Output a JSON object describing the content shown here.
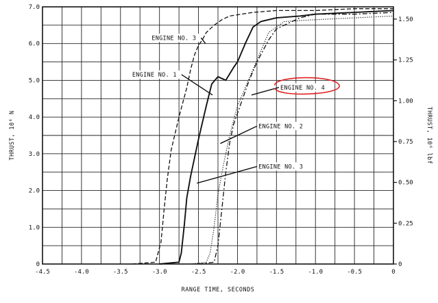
{
  "chart_data": {
    "type": "line",
    "title": "",
    "xlabel": "RANGE TIME, SECONDS",
    "ylabel": "THRUST, 10⁶ N",
    "y2label": "THRUST, 10⁶ lbf",
    "xlim": [
      -4.5,
      0
    ],
    "ylim": [
      0,
      7.0
    ],
    "y2lim": [
      0,
      1.575
    ],
    "x_ticks": [
      -4.5,
      -4.0,
      -3.5,
      -3.0,
      -2.5,
      -2.0,
      -1.5,
      -1.0,
      -0.5,
      0
    ],
    "x_tick_labels": [
      "-4.5",
      "-4.0",
      "-3.5",
      "-3.0",
      "-2.5",
      "-2.0",
      "-1.5",
      "-1.0",
      "-0.5",
      "0"
    ],
    "y_ticks": [
      0,
      1.0,
      2.0,
      3.0,
      4.0,
      5.0,
      6.0,
      7.0
    ],
    "y_tick_labels": [
      "0",
      "1.0",
      "2.0",
      "3.0",
      "4.0",
      "5.0",
      "6.0",
      "7.0"
    ],
    "y2_ticks": [
      0,
      0.25,
      0.5,
      0.75,
      1.0,
      1.25,
      1.5
    ],
    "y2_tick_labels": [
      "0",
      "0.25",
      "0.50",
      "0.75",
      "1.00",
      "1.25",
      "1.50"
    ],
    "grid": true,
    "legend": "none",
    "series": [
      {
        "name": "ENGINE NO. 1",
        "style": "solid",
        "x": [
          -3.0,
          -2.75,
          -2.72,
          -2.68,
          -2.65,
          -2.6,
          -2.5,
          -2.4,
          -2.33,
          -2.25,
          -2.2,
          -2.15,
          -2.05,
          -2.0,
          -1.9,
          -1.8,
          -1.7,
          -1.5,
          -1.2,
          -1.0,
          -0.5,
          0
        ],
        "y": [
          0,
          0.05,
          0.3,
          1.1,
          1.8,
          2.4,
          3.4,
          4.3,
          4.9,
          5.1,
          5.05,
          5.0,
          5.35,
          5.5,
          6.0,
          6.45,
          6.6,
          6.7,
          6.75,
          6.8,
          6.85,
          6.9
        ]
      },
      {
        "name": "ENGINE NO. 2",
        "style": "dash-dot",
        "x": [
          -2.5,
          -2.3,
          -2.25,
          -2.2,
          -2.15,
          -2.1,
          -2.05,
          -1.95,
          -1.85,
          -1.75,
          -1.7,
          -1.6,
          -1.5,
          -1.2,
          -1.0,
          -0.5,
          0
        ],
        "y": [
          0,
          0.05,
          0.5,
          1.5,
          2.5,
          3.3,
          3.8,
          4.4,
          5.0,
          5.5,
          5.7,
          6.1,
          6.4,
          6.7,
          6.8,
          6.8,
          6.85
        ]
      },
      {
        "name": "ENGINE NO. 3",
        "style": "dashed",
        "x": [
          -3.35,
          -3.05,
          -2.98,
          -2.94,
          -2.9,
          -2.85,
          -2.75,
          -2.65,
          -2.6,
          -2.55,
          -2.5,
          -2.45,
          -2.4,
          -2.3,
          -2.2,
          -2.1,
          -1.8,
          -1.5,
          -1.0,
          -0.5,
          0
        ],
        "y": [
          0,
          0.05,
          0.6,
          1.5,
          2.3,
          3.1,
          4.0,
          4.8,
          5.3,
          5.7,
          5.95,
          6.1,
          6.3,
          6.5,
          6.65,
          6.75,
          6.85,
          6.9,
          6.9,
          6.95,
          6.95
        ]
      },
      {
        "name": "ENGINE NO. 4",
        "style": "dotted",
        "x": [
          -2.6,
          -2.4,
          -2.35,
          -2.3,
          -2.25,
          -2.18,
          -2.1,
          -2.0,
          -1.9,
          -1.8,
          -1.7,
          -1.6,
          -1.4,
          -1.0,
          -0.5,
          0
        ],
        "y": [
          0,
          0.05,
          0.3,
          1.0,
          1.9,
          2.7,
          3.5,
          4.3,
          4.8,
          5.3,
          5.8,
          6.3,
          6.6,
          6.65,
          6.7,
          6.75
        ]
      }
    ],
    "annotations": [
      {
        "text": "ENGINE NO. 3",
        "series": "ENGINE NO. 3",
        "label_at": [
          -3.1,
          6.1
        ],
        "points_to": [
          -2.41,
          6.0
        ]
      },
      {
        "text": "ENGINE NO. 1",
        "series": "ENGINE NO. 1",
        "label_at": [
          -3.35,
          5.1
        ],
        "points_to": [
          -2.32,
          4.6
        ]
      },
      {
        "text": "ENGINE NO. 4",
        "series": "ENGINE NO. 4",
        "label_at": [
          -1.45,
          4.75
        ],
        "points_to": [
          -1.82,
          4.6
        ]
      },
      {
        "text": "ENGINE NO. 2",
        "series": "ENGINE NO. 2",
        "label_at": [
          -1.73,
          3.7
        ],
        "points_to": [
          -2.22,
          3.28
        ]
      },
      {
        "text": "ENGINE NO. 3",
        "series": "ENGINE NO. 3",
        "label_at": [
          -1.73,
          2.6
        ],
        "points_to": [
          -2.52,
          2.2
        ]
      }
    ],
    "highlight": {
      "target": "ENGINE NO. 4",
      "shape": "hand-drawn ellipse",
      "color": "#e02020"
    }
  }
}
